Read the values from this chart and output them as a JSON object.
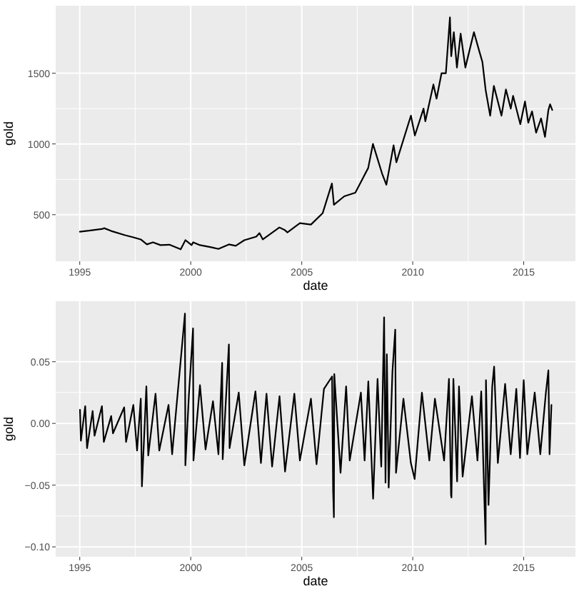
{
  "chart_data": [
    {
      "type": "line",
      "xlabel": "date",
      "ylabel": "gold",
      "color": "#000000",
      "grid": true,
      "xlim": [
        "1993-12-01",
        "2017-05-01"
      ],
      "ylim": [
        171,
        1977
      ],
      "xticks": [
        {
          "value": "1995-01-01",
          "label": "1995"
        },
        {
          "value": "2000-01-01",
          "label": "2000"
        },
        {
          "value": "2005-01-01",
          "label": "2005"
        },
        {
          "value": "2010-01-01",
          "label": "2010"
        },
        {
          "value": "2015-01-01",
          "label": "2015"
        }
      ],
      "yticks": [
        500,
        1000,
        1500
      ],
      "x": [
        "1995-01-03",
        "1995-06-01",
        "1996-01-15",
        "1996-02-05",
        "1996-06-01",
        "1997-01-15",
        "1997-06-01",
        "1997-10-01",
        "1998-01-10",
        "1998-04-20",
        "1998-08-20",
        "1999-01-15",
        "1999-07-20",
        "1999-10-05",
        "2000-01-15",
        "2000-02-10",
        "2000-06-01",
        "2000-12-01",
        "2001-04-01",
        "2001-09-20",
        "2002-01-10",
        "2002-06-01",
        "2002-12-15",
        "2003-02-05",
        "2003-04-01",
        "2003-12-30",
        "2004-04-01",
        "2004-05-10",
        "2004-12-01",
        "2005-06-01",
        "2005-12-10",
        "2006-05-12",
        "2006-06-14",
        "2006-12-01",
        "2007-06-01",
        "2007-12-30",
        "2008-03-17",
        "2008-08-15",
        "2008-10-24",
        "2009-02-20",
        "2009-04-07",
        "2009-12-02",
        "2010-02-05",
        "2010-06-28",
        "2010-07-27",
        "2010-12-07",
        "2011-01-28",
        "2011-04-20",
        "2011-06-30",
        "2011-09-05",
        "2011-09-26",
        "2011-11-08",
        "2011-12-29",
        "2012-02-28",
        "2012-05-16",
        "2012-10-04",
        "2012-12-28",
        "2013-02-20",
        "2013-04-15",
        "2013-06-28",
        "2013-08-28",
        "2013-12-31",
        "2014-03-14",
        "2014-06-02",
        "2014-07-10",
        "2014-11-06",
        "2015-01-22",
        "2015-03-17",
        "2015-05-18",
        "2015-07-24",
        "2015-10-14",
        "2015-12-17",
        "2016-02-11",
        "2016-03-10",
        "2016-04-15"
      ],
      "values": [
        380,
        387,
        400,
        405,
        385,
        355,
        340,
        325,
        290,
        305,
        285,
        288,
        255,
        320,
        285,
        305,
        285,
        270,
        258,
        290,
        280,
        320,
        345,
        370,
        325,
        410,
        390,
        375,
        440,
        430,
        510,
        720,
        570,
        630,
        655,
        830,
        1000,
        790,
        712,
        990,
        870,
        1200,
        1060,
        1250,
        1160,
        1420,
        1320,
        1500,
        1500,
        1895,
        1620,
        1790,
        1540,
        1780,
        1540,
        1790,
        1660,
        1580,
        1380,
        1200,
        1410,
        1200,
        1385,
        1250,
        1340,
        1140,
        1300,
        1150,
        1230,
        1080,
        1180,
        1050,
        1240,
        1280,
        1240
      ]
    },
    {
      "type": "line",
      "xlabel": "date",
      "ylabel": "gold",
      "color": "#000000",
      "grid": true,
      "xlim": [
        "1993-12-01",
        "2017-05-01"
      ],
      "ylim": [
        -0.108,
        0.099
      ],
      "xticks": [
        {
          "value": "1995-01-01",
          "label": "1995"
        },
        {
          "value": "2000-01-01",
          "label": "2000"
        },
        {
          "value": "2005-01-01",
          "label": "2005"
        },
        {
          "value": "2010-01-01",
          "label": "2010"
        },
        {
          "value": "2015-01-01",
          "label": "2015"
        }
      ],
      "yticks": [
        {
          "value": 0.05,
          "label": "0.05"
        },
        {
          "value": 0,
          "label": "0.00"
        },
        {
          "value": -0.05,
          "label": "−0.05"
        },
        {
          "value": -0.1,
          "label": "−0.10"
        }
      ],
      "x": [
        "1995-01-05",
        "1995-01-20",
        "1995-04-01",
        "1995-05-01",
        "1995-08-01",
        "1995-09-01",
        "1996-01-01",
        "1996-02-01",
        "1996-06-01",
        "1996-07-01",
        "1997-01-01",
        "1997-02-01",
        "1997-06-01",
        "1997-08-01",
        "1997-10-01",
        "1997-10-20",
        "1998-01-01",
        "1998-02-01",
        "1998-06-01",
        "1998-08-01",
        "1999-01-01",
        "1999-03-01",
        "1999-09-28",
        "1999-10-05",
        "1999-12-01",
        "2000-02-08",
        "2000-02-15",
        "2000-06-01",
        "2000-09-01",
        "2001-01-01",
        "2001-04-01",
        "2001-06-01",
        "2001-06-10",
        "2001-09-20",
        "2001-10-01",
        "2002-03-01",
        "2002-06-01",
        "2002-12-01",
        "2003-03-01",
        "2003-06-01",
        "2003-09-01",
        "2004-01-01",
        "2004-04-01",
        "2004-09-01",
        "2004-12-01",
        "2005-06-01",
        "2005-09-01",
        "2006-01-01",
        "2006-05-15",
        "2006-06-01",
        "2006-06-14",
        "2006-06-20",
        "2006-10-01",
        "2007-01-01",
        "2007-03-01",
        "2007-09-01",
        "2007-11-01",
        "2008-01-01",
        "2008-03-20",
        "2008-06-01",
        "2008-08-01",
        "2008-09-17",
        "2008-10-10",
        "2008-11-01",
        "2008-12-01",
        "2009-02-01",
        "2009-03-19",
        "2009-04-01",
        "2009-08-01",
        "2009-12-01",
        "2010-02-01",
        "2010-06-01",
        "2010-10-01",
        "2011-01-01",
        "2011-06-01",
        "2011-08-20",
        "2011-09-23",
        "2011-09-30",
        "2011-11-01",
        "2012-01-01",
        "2012-02-01",
        "2012-04-01",
        "2012-09-01",
        "2012-12-01",
        "2013-02-01",
        "2013-04-15",
        "2013-04-20",
        "2013-06-01",
        "2013-08-01",
        "2013-09-01",
        "2013-11-01",
        "2014-03-01",
        "2014-06-01",
        "2014-09-01",
        "2014-11-01",
        "2015-01-01",
        "2015-03-01",
        "2015-07-01",
        "2015-10-01",
        "2016-01-01",
        "2016-02-11",
        "2016-03-01",
        "2016-04-01"
      ],
      "values": [
        0.011,
        -0.014,
        0.014,
        -0.02,
        0.01,
        -0.01,
        0.014,
        -0.015,
        0.006,
        -0.008,
        0.013,
        -0.015,
        0.015,
        -0.022,
        0.02,
        -0.051,
        0.03,
        -0.026,
        0.024,
        -0.022,
        0.015,
        -0.025,
        0.089,
        -0.034,
        0.022,
        0.077,
        -0.03,
        0.031,
        -0.021,
        0.018,
        -0.025,
        0.049,
        -0.029,
        0.064,
        -0.02,
        0.025,
        -0.034,
        0.026,
        -0.032,
        0.024,
        -0.035,
        0.022,
        -0.039,
        0.024,
        -0.03,
        0.02,
        -0.033,
        0.028,
        0.038,
        -0.055,
        -0.076,
        0.04,
        -0.04,
        0.03,
        -0.03,
        0.025,
        -0.03,
        0.034,
        -0.061,
        0.036,
        -0.035,
        0.086,
        -0.048,
        0.056,
        -0.052,
        0.042,
        0.076,
        -0.04,
        0.02,
        -0.032,
        -0.045,
        0.025,
        -0.03,
        0.02,
        -0.03,
        0.036,
        -0.058,
        -0.06,
        0.036,
        -0.047,
        0.03,
        -0.043,
        0.022,
        -0.03,
        0.026,
        -0.098,
        0.035,
        -0.066,
        0.03,
        0.046,
        -0.032,
        0.032,
        -0.025,
        0.028,
        -0.028,
        0.035,
        -0.025,
        0.025,
        -0.025,
        0.025,
        0.043,
        -0.025,
        0.015
      ]
    }
  ]
}
